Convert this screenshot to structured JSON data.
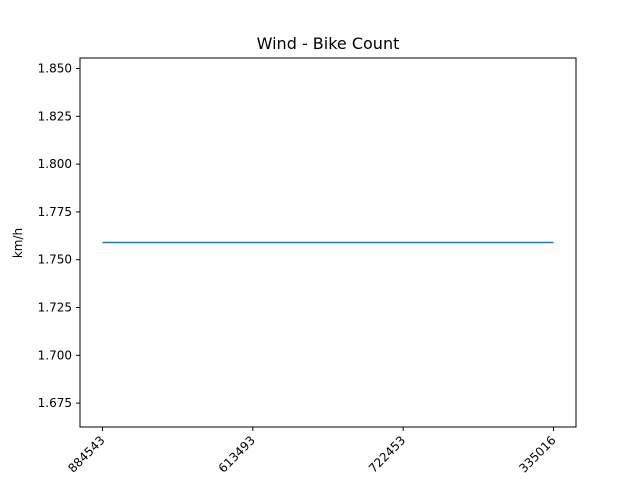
{
  "chart_data": {
    "type": "line",
    "title": "Wind - Bike Count",
    "xlabel": "",
    "ylabel": "km/h",
    "categories": [
      "884543",
      "613493",
      "722453",
      "335016"
    ],
    "series": [
      {
        "values": [
          1.759,
          1.759,
          1.759,
          1.759
        ]
      }
    ],
    "ylim": [
      1.6625,
      1.8555
    ],
    "yticks": [
      "1.675",
      "1.700",
      "1.725",
      "1.750",
      "1.775",
      "1.800",
      "1.825",
      "1.850"
    ],
    "grid": false,
    "colors": {
      "series": "#1f77b4",
      "axes": "#000000",
      "background": "#ffffff"
    }
  }
}
